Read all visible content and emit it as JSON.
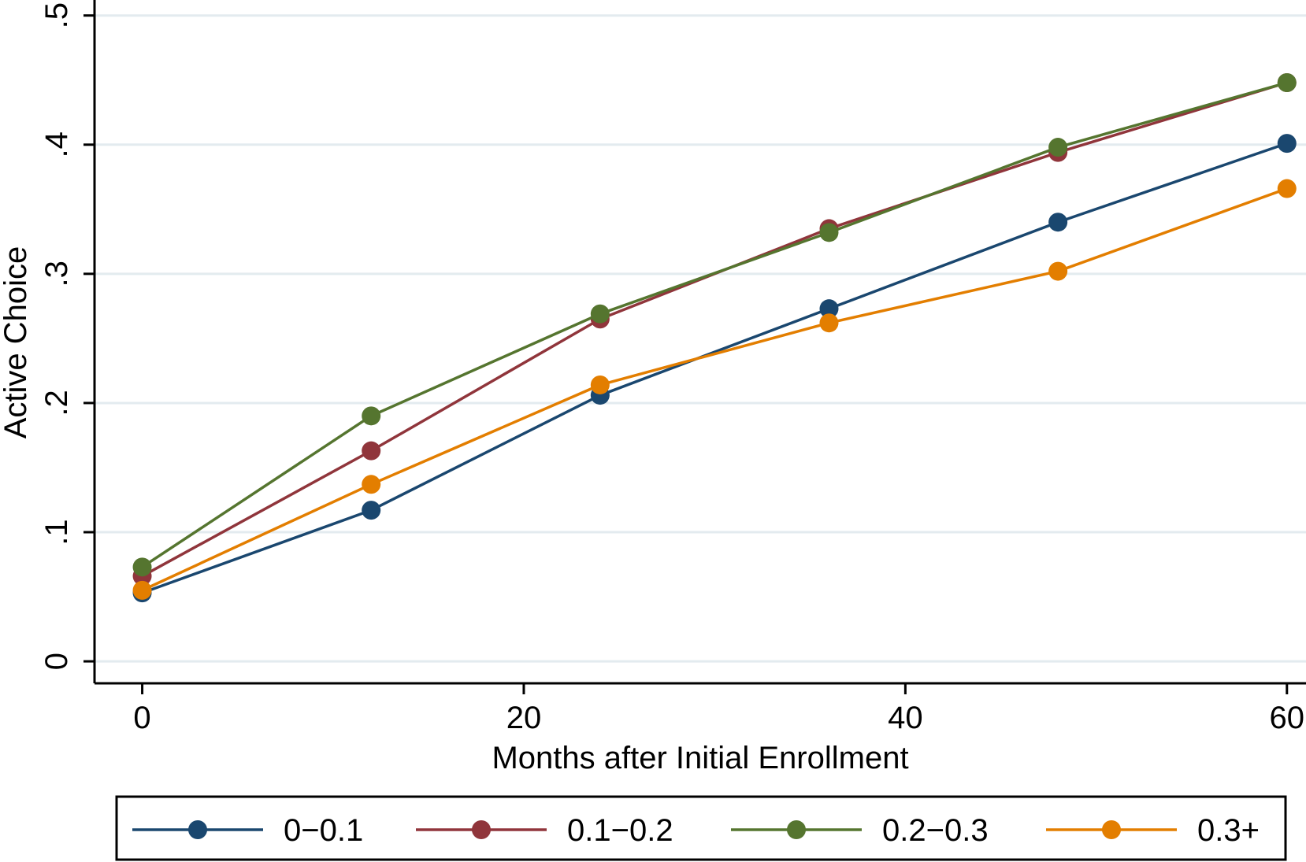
{
  "chart_data": {
    "type": "line",
    "title": "",
    "xlabel": "Months after Initial Enrollment",
    "ylabel": "Active Choice",
    "xlim": [
      -2.5,
      61
    ],
    "ylim": [
      -0.017,
      0.512
    ],
    "xticks": [
      0,
      20,
      40,
      60
    ],
    "xtick_labels": [
      "0",
      "20",
      "40",
      "60"
    ],
    "yticks": [
      0,
      0.1,
      0.2,
      0.3,
      0.4,
      0.5
    ],
    "ytick_labels": [
      "0",
      ".1",
      ".2",
      ".3",
      ".4",
      ".5"
    ],
    "grid": true,
    "legend_position": "bottom",
    "x": [
      0,
      12,
      24,
      36,
      48,
      60
    ],
    "series": [
      {
        "name": "0−0.1",
        "color": "#1a476f",
        "values": [
          0.053,
          0.117,
          0.206,
          0.273,
          0.34,
          0.401
        ]
      },
      {
        "name": "0.1−0.2",
        "color": "#90353b",
        "values": [
          0.066,
          0.163,
          0.265,
          0.335,
          0.394,
          0.448
        ]
      },
      {
        "name": "0.2−0.3",
        "color": "#55752f",
        "values": [
          0.073,
          0.19,
          0.269,
          0.332,
          0.398,
          0.448
        ]
      },
      {
        "name": "0.3+",
        "color": "#e37e00",
        "values": [
          0.055,
          0.137,
          0.214,
          0.262,
          0.302,
          0.366
        ]
      }
    ]
  }
}
